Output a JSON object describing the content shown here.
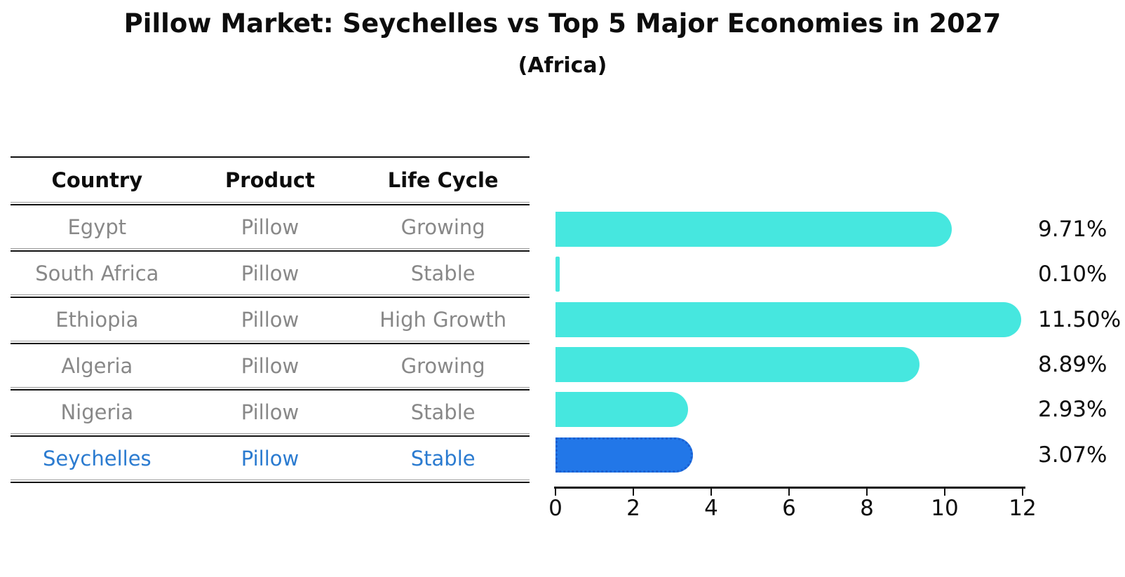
{
  "chart_data": {
    "type": "bar",
    "orientation": "horizontal",
    "title": "Pillow Market: Seychelles vs Top 5 Major Economies in 2027",
    "subtitle": "(Africa)",
    "categories": [
      "Egypt",
      "South Africa",
      "Ethiopia",
      "Algeria",
      "Nigeria",
      "Seychelles"
    ],
    "values": [
      9.71,
      0.1,
      11.5,
      8.89,
      2.93,
      3.07
    ],
    "value_labels": [
      "9.71%",
      "0.10%",
      "11.50%",
      "8.89%",
      "2.93%",
      "3.07%"
    ],
    "xticks": [
      "0",
      "2",
      "4",
      "6",
      "8",
      "10",
      "12"
    ],
    "xlim": [
      0,
      12
    ],
    "grid": false,
    "legend": false,
    "highlight_index": 5,
    "bar_color": "#46e7df",
    "highlight_bar_color": "#2277e8",
    "highlight_border_color": "#1b5fd0",
    "highlight_text_color": "#2b7bd0",
    "row_text_color": "#888888"
  },
  "table": {
    "headers": [
      "Country",
      "Product",
      "Life Cycle"
    ],
    "rows": [
      {
        "country": "Egypt",
        "product": "Pillow",
        "life_cycle": "Growing"
      },
      {
        "country": "South Africa",
        "product": "Pillow",
        "life_cycle": "Stable"
      },
      {
        "country": "Ethiopia",
        "product": "Pillow",
        "life_cycle": "High Growth"
      },
      {
        "country": "Algeria",
        "product": "Pillow",
        "life_cycle": "Growing"
      },
      {
        "country": "Nigeria",
        "product": "Pillow",
        "life_cycle": "Stable"
      },
      {
        "country": "Seychelles",
        "product": "Pillow",
        "life_cycle": "Stable"
      }
    ]
  }
}
